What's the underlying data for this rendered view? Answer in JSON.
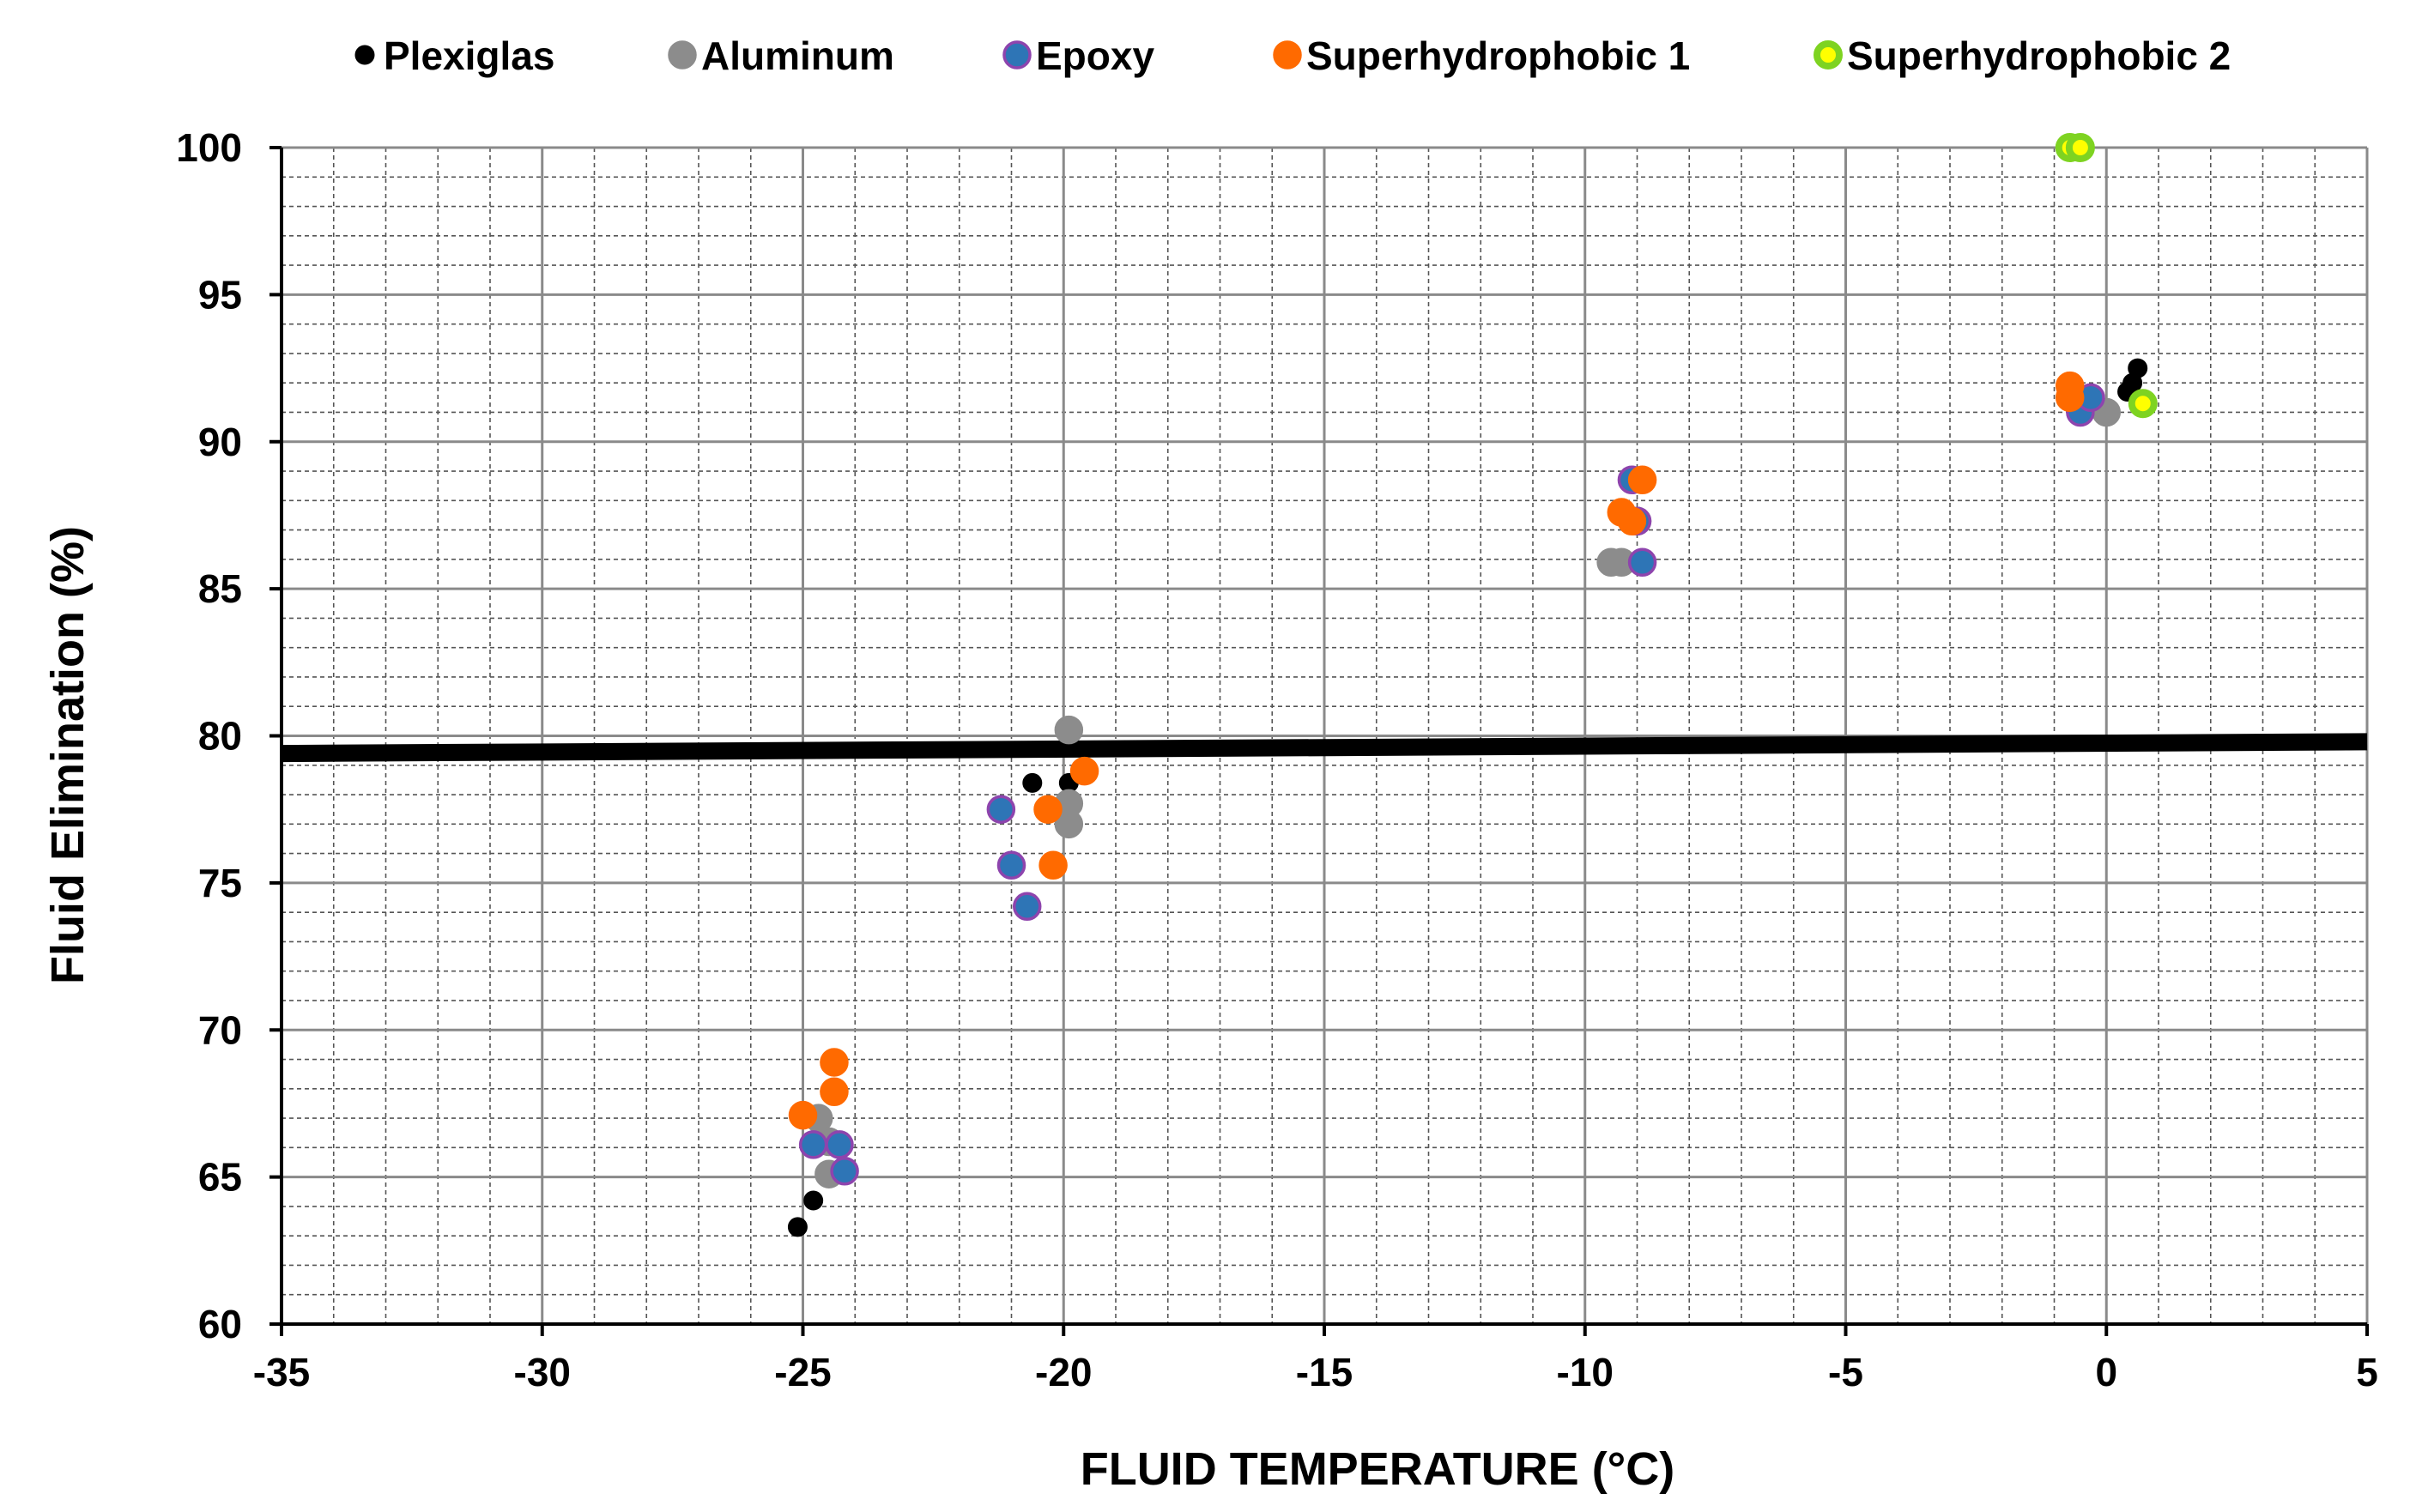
{
  "chart_data": {
    "type": "scatter",
    "title": "",
    "xlabel": "FLUID TEMPERATURE (°C)",
    "ylabel": "Fluid Elimination (%)",
    "xlim": [
      -35,
      5
    ],
    "ylim": [
      60,
      100
    ],
    "x_ticks": [
      -35,
      -30,
      -25,
      -20,
      -15,
      -10,
      -5,
      0,
      5
    ],
    "y_ticks": [
      60,
      65,
      70,
      75,
      80,
      85,
      90,
      95,
      100
    ],
    "x_tick_labels": [
      "-35",
      "-30",
      "-25",
      "-20",
      "-15",
      "-10",
      "-5",
      "0",
      "5"
    ],
    "y_tick_labels": [
      "60",
      "65",
      "70",
      "75",
      "80",
      "85",
      "90",
      "95",
      "100"
    ],
    "grid": true,
    "legend_position": "top",
    "threshold_line": {
      "x": [
        -35,
        5
      ],
      "y": [
        79.4,
        79.8
      ],
      "color": "#000000"
    },
    "series": [
      {
        "name": "Plexiglas",
        "fill": "#000000",
        "stroke": "#000000",
        "marker": "small",
        "points": [
          [
            -25.1,
            63.3
          ],
          [
            -24.8,
            64.2
          ],
          [
            -20.6,
            78.4
          ],
          [
            -19.9,
            78.4
          ],
          [
            0.4,
            91.7
          ],
          [
            0.5,
            92.0
          ],
          [
            0.6,
            92.5
          ]
        ]
      },
      {
        "name": "Aluminum",
        "fill": "#8c8c8c",
        "stroke": "#8c8c8c",
        "marker": "large",
        "points": [
          [
            -24.7,
            67.0
          ],
          [
            -24.5,
            66.2
          ],
          [
            -24.5,
            65.1
          ],
          [
            -19.9,
            80.2
          ],
          [
            -19.9,
            77.7
          ],
          [
            -19.9,
            77.0
          ],
          [
            -9.5,
            85.9
          ],
          [
            -9.3,
            85.9
          ],
          [
            -9.0,
            87.3
          ],
          [
            0.0,
            91.0
          ],
          [
            -0.3,
            91.3
          ]
        ]
      },
      {
        "name": "Epoxy",
        "fill": "#2e75b6",
        "stroke": "#8e44ad",
        "marker": "large",
        "points": [
          [
            -24.8,
            66.1
          ],
          [
            -24.3,
            66.1
          ],
          [
            -24.2,
            65.2
          ],
          [
            -21.2,
            77.5
          ],
          [
            -21.0,
            75.6
          ],
          [
            -20.7,
            74.2
          ],
          [
            -9.1,
            88.7
          ],
          [
            -9.0,
            87.3
          ],
          [
            -8.9,
            85.9
          ],
          [
            -0.5,
            91.0
          ],
          [
            -0.3,
            91.5
          ]
        ]
      },
      {
        "name": "Superhydrophobic 1",
        "fill": "#ff6a00",
        "stroke": "#ff6a00",
        "marker": "large",
        "points": [
          [
            -25.0,
            67.1
          ],
          [
            -24.4,
            68.9
          ],
          [
            -24.4,
            67.9
          ],
          [
            -20.3,
            77.5
          ],
          [
            -20.2,
            75.6
          ],
          [
            -19.6,
            78.8
          ],
          [
            -9.3,
            87.6
          ],
          [
            -9.1,
            87.3
          ],
          [
            -8.9,
            88.7
          ],
          [
            -0.7,
            91.5
          ],
          [
            -0.7,
            91.9
          ]
        ]
      },
      {
        "name": "Superhydrophobic 2",
        "fill": "#ffff00",
        "stroke": "#7ed321",
        "marker": "ring",
        "points": [
          [
            -0.7,
            100.0
          ],
          [
            -0.5,
            100.0
          ],
          [
            0.7,
            91.3
          ]
        ]
      }
    ]
  }
}
